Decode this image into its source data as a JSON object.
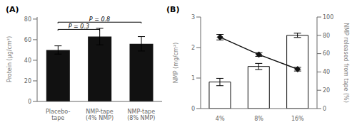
{
  "chart_data": [
    {
      "type": "bar",
      "title": "(A)",
      "categories": [
        "Placebo-\ntape",
        "NMP-tape\n(4% NMP)",
        "NMP-tape\n(8% NMP)"
      ],
      "values": [
        50,
        63,
        56
      ],
      "errors": [
        4,
        8,
        7
      ],
      "color": "#111111",
      "ylabel": "Protein (µg/cm²)",
      "ylim": [
        0,
        82
      ],
      "yticks": [
        0,
        20,
        40,
        60,
        80
      ],
      "grid": false,
      "annotations": [
        {
          "x1": 0,
          "x2": 1,
          "y": 70,
          "text": "P = 0.3"
        },
        {
          "x1": 0,
          "x2": 2,
          "y": 77,
          "text": "P = 0.8"
        }
      ]
    },
    {
      "type": "bar",
      "title": "(B)",
      "categories": [
        "4%",
        "8%",
        "16%"
      ],
      "ylabel": "NMP (mg/cm²)",
      "y2label": "NMP released from tape (%)",
      "ylim": [
        0,
        3
      ],
      "yticks": [
        0,
        1,
        2,
        3
      ],
      "y2lim": [
        0,
        100
      ],
      "y2ticks": [
        0,
        20,
        40,
        60,
        80,
        100
      ],
      "grid": false,
      "series": [
        {
          "type": "bar",
          "color": "#ffffff",
          "values": [
            0.87,
            1.38,
            2.4
          ],
          "errors": [
            0.12,
            0.1,
            0.07
          ]
        },
        {
          "type": "line",
          "axis": "y2",
          "color": "#111111",
          "marker": "diamond",
          "values": [
            78,
            59,
            43
          ],
          "errors": [
            3,
            2,
            2
          ]
        }
      ]
    }
  ]
}
